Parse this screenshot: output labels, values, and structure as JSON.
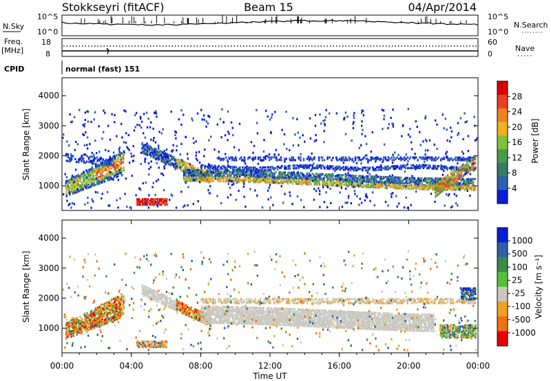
{
  "header": {
    "station": "Stokkseyri (fitACF)",
    "beam": "Beam 15",
    "date": "04/Apr/2014"
  },
  "params": {
    "nsky_label": "N.Sky",
    "nsky_ticks": [
      "10^5",
      "10^0"
    ],
    "nsearch_label": "N.Search",
    "freq_label": "Freq.",
    "freq_unit": "[MHz]",
    "freq_ticks": [
      "18",
      "8"
    ],
    "nave_label": "Nave",
    "nave_ticks": [
      "60",
      "0"
    ],
    "cpid_label": "CPID",
    "cpid_value": "normal (fast) 151"
  },
  "colors": {
    "power_scale": [
      "#0a1fd6",
      "#2e5fae",
      "#3b7a66",
      "#4a9a4a",
      "#7ec23a",
      "#f0b020",
      "#f08020",
      "#e84020",
      "#dd0000"
    ],
    "velocity_scale": [
      "#0a1fd6",
      "#2f5fa8",
      "#3d8a4a",
      "#55c13a",
      "#c8c8c0",
      "#f0a020",
      "#f07010",
      "#ee0000"
    ]
  },
  "chart_data": [
    {
      "type": "heatmap",
      "name": "power",
      "ylabel": "Slant Range [km]",
      "xlabel": "",
      "xlim": [
        "00:00",
        "00:00"
      ],
      "ylim": [
        180,
        4600
      ],
      "yticks": [
        "1000",
        "2000",
        "3000",
        "4000"
      ],
      "colorbar_label": "Power [dB]",
      "colorbar_ticks": [
        "28",
        "24",
        "20",
        "16",
        "12",
        "8",
        "4"
      ],
      "features": [
        {
          "time_h": [
            0.2,
            3.6
          ],
          "range_km": [
            600,
            2100
          ],
          "value_db": [
            6,
            24
          ]
        },
        {
          "time_h": [
            4.3,
            6.0
          ],
          "range_km": [
            380,
            620
          ],
          "value_db": [
            22,
            30
          ]
        },
        {
          "time_h": [
            6.0,
            23.9
          ],
          "range_km": [
            800,
            2200
          ],
          "value_db": [
            4,
            24
          ]
        }
      ]
    },
    {
      "type": "heatmap",
      "name": "velocity",
      "ylabel": "Slant Range [km]",
      "xlabel": "Time UT",
      "xticks": [
        "00:00",
        "04:00",
        "08:00",
        "12:00",
        "16:00",
        "20:00",
        "00:00"
      ],
      "ylim": [
        180,
        4600
      ],
      "yticks": [
        "1000",
        "2000",
        "3000",
        "4000"
      ],
      "colorbar_label": "Velocity [m s⁻¹]",
      "colorbar_ticks": [
        "1000",
        "500",
        "100",
        "25",
        "-25",
        "-100",
        "-500",
        "-1000"
      ],
      "features": [
        {
          "time_h": [
            0.2,
            3.6
          ],
          "range_km": [
            600,
            2200
          ],
          "value_ms": [
            -600,
            300
          ]
        },
        {
          "time_h": [
            4.3,
            6.0
          ],
          "range_km": [
            380,
            620
          ],
          "value_ms": [
            -300,
            100
          ]
        },
        {
          "time_h": [
            8.0,
            21.5
          ],
          "range_km": [
            900,
            2200
          ],
          "value_ms": [
            -25,
            25
          ]
        },
        {
          "time_h": [
            21.8,
            23.9
          ],
          "range_km": [
            700,
            1200
          ],
          "value_ms": [
            100,
            800
          ]
        }
      ]
    }
  ]
}
